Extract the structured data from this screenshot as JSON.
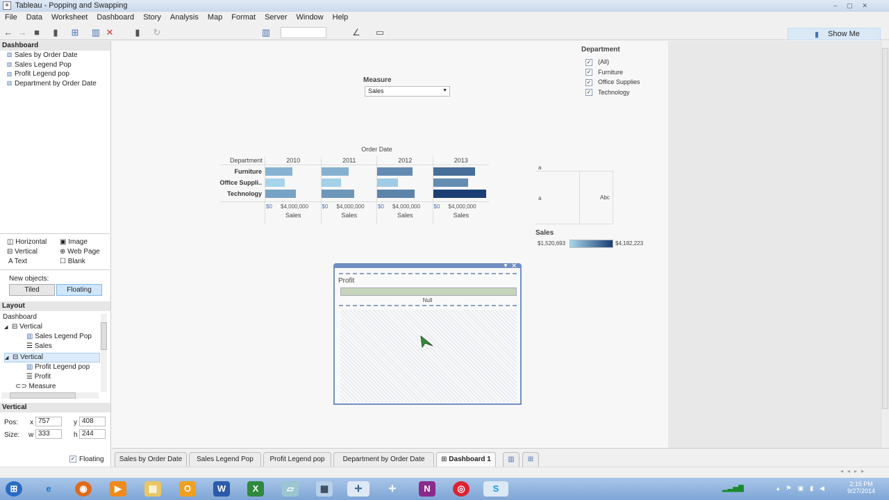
{
  "window": {
    "title": "Tableau - Popping and Swapping"
  },
  "menu": [
    "File",
    "Data",
    "Worksheet",
    "Dashboard",
    "Story",
    "Analysis",
    "Map",
    "Format",
    "Server",
    "Window",
    "Help"
  ],
  "toolbar": {
    "show_me": "Show Me"
  },
  "left": {
    "dashboard_header": "Dashboard",
    "sheets": [
      "Sales by Order Date",
      "Sales Legend Pop",
      "Profit Legend pop",
      "Department by Order Date"
    ],
    "objects": [
      {
        "label": "Horizontal",
        "icon": "horizontal-icon"
      },
      {
        "label": "Image",
        "icon": "image-icon"
      },
      {
        "label": "Vertical",
        "icon": "vertical-icon"
      },
      {
        "label": "Web Page",
        "icon": "globe-icon"
      },
      {
        "label": "Text",
        "icon": "text-icon"
      },
      {
        "label": "Blank",
        "icon": "blank-icon"
      }
    ],
    "new_objects_label": "New objects:",
    "tiled": "Tiled",
    "floating": "Floating",
    "layout_header": "Layout",
    "tree": [
      {
        "label": "Dashboard",
        "level": 0
      },
      {
        "label": "Vertical",
        "level": 1
      },
      {
        "label": "Sales Legend Pop",
        "level": 2
      },
      {
        "label": "Sales",
        "level": 2
      },
      {
        "label": "Vertical",
        "level": 1,
        "selected": true
      },
      {
        "label": "Profit Legend pop",
        "level": 2
      },
      {
        "label": "Profit",
        "level": 2
      },
      {
        "label": "Measure",
        "level": 1
      }
    ],
    "selected_header": "Vertical",
    "pos_label": "Pos:",
    "size_label": "Size:",
    "x_label": "x",
    "x": "757",
    "y_label": "y",
    "y": "408",
    "w_label": "w",
    "w": "333",
    "h_label": "h",
    "h": "244",
    "floating_check": "Floating"
  },
  "measure": {
    "label": "Measure",
    "value": "Sales"
  },
  "filter": {
    "title": "Department",
    "items": [
      "(All)",
      "Furniture",
      "Office Supplies",
      "Technology"
    ]
  },
  "legend_area": {
    "a1": "a",
    "a2": "a",
    "abc": "Abc"
  },
  "color_legend": {
    "title": "Sales",
    "min": "$1,520,693",
    "max": "$4,182,223",
    "colors": [
      "#a6d4ea",
      "#1b3e74"
    ]
  },
  "chart_data": {
    "type": "bar",
    "title": "Order Date",
    "row_header": "Department",
    "columns": [
      "2010",
      "2011",
      "2012",
      "2013"
    ],
    "categories": [
      "Furniture",
      "Office Suppli..",
      "Technology"
    ],
    "series": [
      {
        "column": "2010",
        "values": [
          2110000,
          1520693,
          2410000
        ]
      },
      {
        "column": "2011",
        "values": [
          2150000,
          1570000,
          2610000
        ]
      },
      {
        "column": "2012",
        "values": [
          2810000,
          1660000,
          2940000
        ]
      },
      {
        "column": "2013",
        "values": [
          3340000,
          2780000,
          4182223
        ]
      }
    ],
    "xlabel": "Sales",
    "ticks": [
      "$0",
      "$4,000,000"
    ],
    "xlim": [
      0,
      4400000
    ]
  },
  "popup": {
    "title": "Profit",
    "null_label": "Null"
  },
  "tabs": [
    "Sales by Order Date",
    "Sales Legend Pop",
    "Profit Legend pop",
    "Department by Order Date",
    "Dashboard 1"
  ],
  "clock": {
    "time": "2:15 PM",
    "date": "9/27/2014"
  }
}
